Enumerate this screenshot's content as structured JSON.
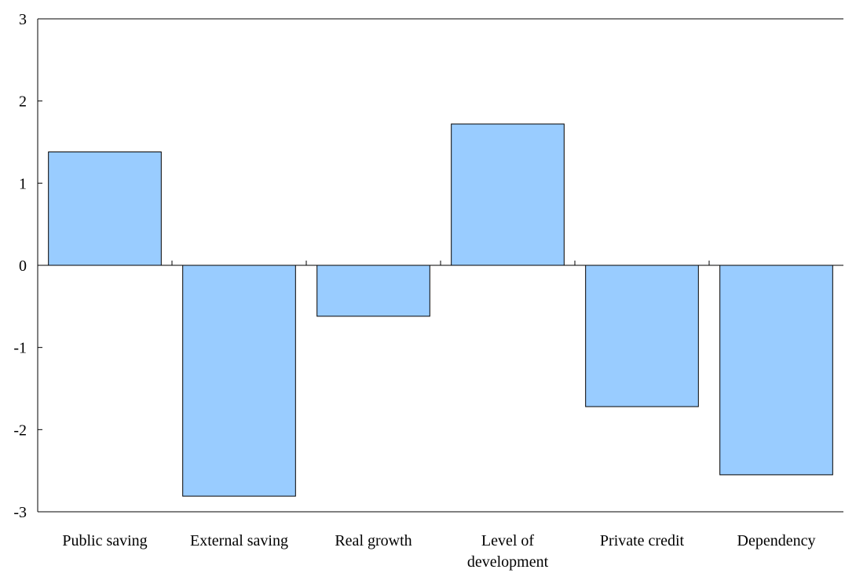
{
  "chart_data": {
    "type": "bar",
    "categories": [
      [
        "Public saving"
      ],
      [
        "External saving"
      ],
      [
        "Real growth"
      ],
      [
        "Level of",
        "development"
      ],
      [
        "Private credit"
      ],
      [
        "Dependency"
      ]
    ],
    "values": [
      1.38,
      -2.81,
      -0.62,
      1.72,
      -1.72,
      -2.55
    ],
    "ylim": [
      -3,
      3
    ],
    "yticks": [
      3,
      2,
      1,
      0,
      -1,
      -2,
      -3
    ],
    "title": "",
    "xlabel": "",
    "ylabel": "",
    "grid": false,
    "colors": {
      "bar_fill": "#99ccff",
      "bar_stroke": "#000000",
      "axis": "#000000"
    }
  }
}
